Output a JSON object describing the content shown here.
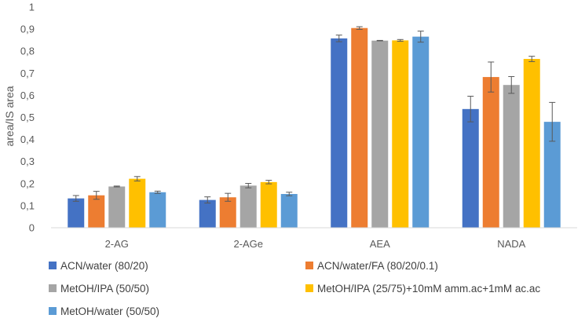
{
  "chart_data": {
    "type": "bar",
    "ylabel": "area/IS area",
    "xlabel": "",
    "ylim": [
      0,
      1
    ],
    "yticks": [
      "0",
      "0,1",
      "0,2",
      "0,3",
      "0,4",
      "0,5",
      "0,6",
      "0,7",
      "0,8",
      "0,9",
      "1"
    ],
    "categories": [
      "2-AG",
      "2-AGe",
      "AEA",
      "NADA"
    ],
    "grid": false,
    "legend_position": "bottom",
    "series": [
      {
        "name": "ACN/water (80/20)",
        "color": "#4472C4",
        "values": [
          0.133,
          0.126,
          0.858,
          0.538
        ],
        "errors": [
          0.013,
          0.014,
          0.015,
          0.058
        ]
      },
      {
        "name": "ACN/water/FA (80/20/0.1)",
        "color": "#ED7D31",
        "values": [
          0.147,
          0.138,
          0.905,
          0.683
        ],
        "errors": [
          0.018,
          0.018,
          0.006,
          0.068
        ]
      },
      {
        "name": "MetOH/IPA (50/50)",
        "color": "#A5A5A5",
        "values": [
          0.187,
          0.191,
          0.848,
          0.647
        ],
        "errors": [
          0.002,
          0.01,
          0.001,
          0.038
        ]
      },
      {
        "name": "MetOH/IPA (25/75)+10mM amm.ac+1mM ac.ac",
        "color": "#FFC000",
        "values": [
          0.222,
          0.207,
          0.849,
          0.765
        ],
        "errors": [
          0.01,
          0.008,
          0.004,
          0.012
        ]
      },
      {
        "name": "MetOH/water (50/50)",
        "color": "#5B9BD5",
        "values": [
          0.161,
          0.153,
          0.866,
          0.48
        ],
        "errors": [
          0.005,
          0.008,
          0.025,
          0.088
        ]
      }
    ]
  }
}
